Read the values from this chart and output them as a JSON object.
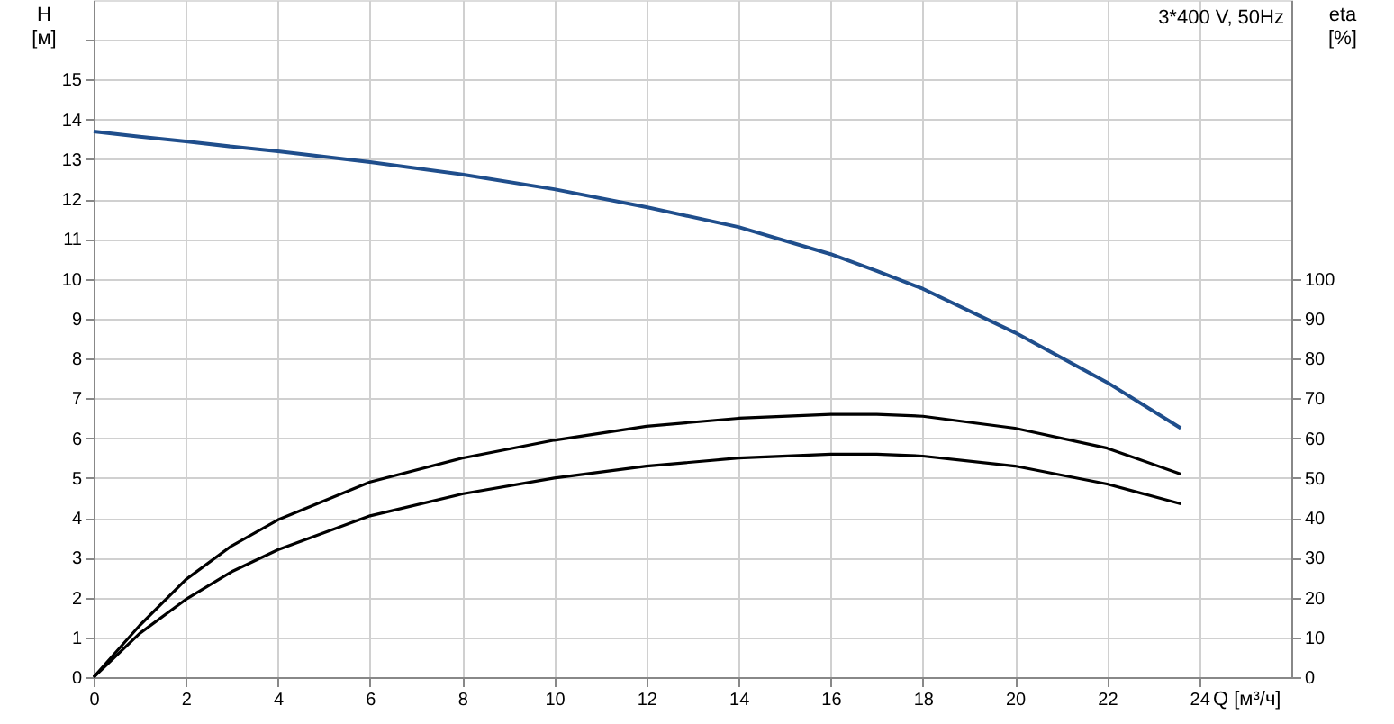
{
  "chart_data": {
    "type": "line",
    "x": [
      0,
      1,
      2,
      3,
      4,
      6,
      8,
      10,
      12,
      14,
      16,
      17,
      18,
      20,
      22,
      23.6
    ],
    "series": [
      {
        "color": "#1f4e8c",
        "values": [
          13.7,
          13.57,
          13.45,
          13.32,
          13.2,
          12.93,
          12.62,
          12.25,
          11.8,
          11.3,
          10.62,
          10.2,
          9.75,
          8.65,
          7.4,
          6.25
        ],
        "axis": "y"
      },
      {
        "color": "#000000",
        "values": [
          0,
          13,
          24.5,
          33,
          39.5,
          49,
          55,
          59.5,
          63,
          65,
          66,
          66,
          65.5,
          62.5,
          57.5,
          51
        ],
        "axis": "y2"
      },
      {
        "color": "#000000",
        "values": [
          0,
          11,
          19.5,
          26.5,
          32,
          40.5,
          46,
          50,
          53,
          55,
          56,
          56,
          55.5,
          53,
          48.5,
          43.5
        ],
        "axis": "y2"
      }
    ],
    "xlabel": "Q [м³/ч]",
    "ylabel": "H [м]",
    "y2label": "eta [%]",
    "xlim": [
      0,
      26
    ],
    "xticks": [
      0,
      2,
      4,
      6,
      8,
      10,
      12,
      14,
      16,
      18,
      20,
      22,
      24
    ],
    "ylim": [
      0,
      17
    ],
    "yticks": [
      0,
      1,
      2,
      3,
      4,
      5,
      6,
      7,
      8,
      9,
      10,
      11,
      12,
      13,
      14,
      15,
      {
        "value": 16,
        "label": null
      }
    ],
    "y2lim": [
      0,
      170
    ],
    "y2ticks": [
      0,
      10,
      20,
      30,
      40,
      50,
      60,
      70,
      80,
      90,
      100
    ],
    "annotations": [
      "3*400 V, 50Hz"
    ],
    "grid": true,
    "marker": "none",
    "line_style": "solid"
  }
}
